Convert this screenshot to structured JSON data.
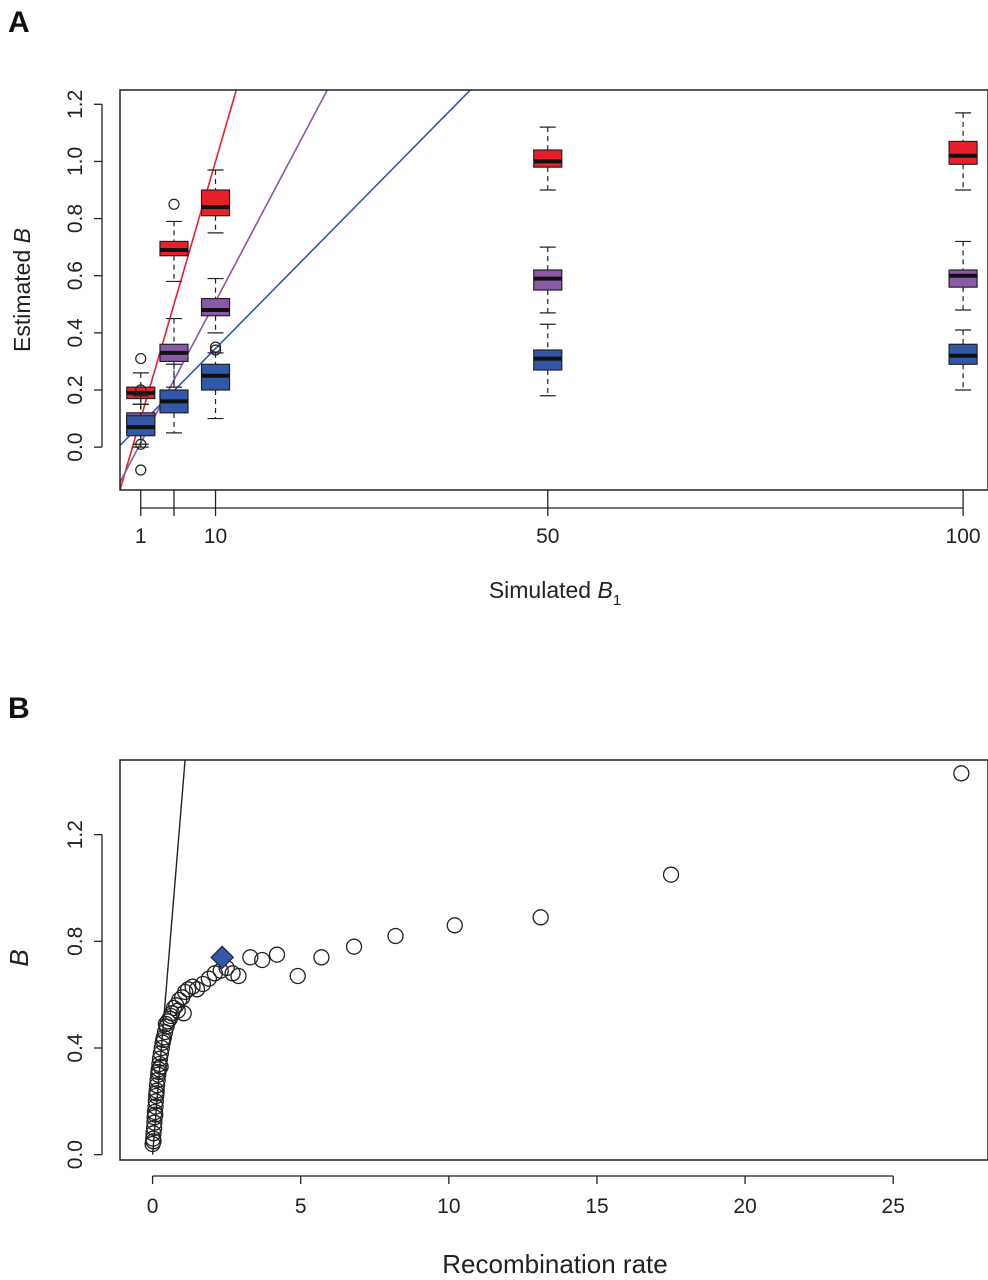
{
  "panels": {
    "a_label": "A",
    "b_label": "B"
  },
  "chart_data": [
    {
      "type": "box",
      "panel": "A",
      "title": "",
      "xlabel": "Simulated B1",
      "xlabel_main": "Simulated ",
      "xlabel_italic": "B",
      "xlabel_sub": "1",
      "ylabel": "Estimated B",
      "ylabel_main": "Estimated ",
      "ylabel_italic": "B",
      "xlim": [
        -1.5,
        103
      ],
      "ylim": [
        -0.15,
        1.25
      ],
      "xticks": [
        1,
        5,
        10,
        50,
        100
      ],
      "xtick_labels": [
        "1",
        "",
        "10",
        "50",
        "100"
      ],
      "yticks": [
        0.0,
        0.2,
        0.4,
        0.6,
        0.8,
        1.0,
        1.2
      ],
      "ytick_labels": [
        "0.0",
        "0.2",
        "0.4",
        "0.6",
        "0.8",
        "1.0",
        "1.2"
      ],
      "series": [
        {
          "color": "#e8202a",
          "boxes": [
            {
              "x": 1,
              "whislo": 0.15,
              "q1": 0.17,
              "med": 0.19,
              "q3": 0.21,
              "whishi": 0.26,
              "outliers": [
                0.31,
                0.2
              ]
            },
            {
              "x": 5,
              "whislo": 0.58,
              "q1": 0.67,
              "med": 0.69,
              "q3": 0.72,
              "whishi": 0.79,
              "outliers": [
                0.85
              ]
            },
            {
              "x": 10,
              "whislo": 0.75,
              "q1": 0.81,
              "med": 0.84,
              "q3": 0.9,
              "whishi": 0.97,
              "outliers": []
            },
            {
              "x": 50,
              "whislo": 0.9,
              "q1": 0.98,
              "med": 1.0,
              "q3": 1.04,
              "whishi": 1.12,
              "outliers": []
            },
            {
              "x": 100,
              "whislo": 0.9,
              "q1": 0.99,
              "med": 1.02,
              "q3": 1.07,
              "whishi": 1.17,
              "outliers": []
            }
          ],
          "line": {
            "slope": 0.1,
            "intercept": 0.0
          }
        },
        {
          "color": "#8a5aa8",
          "boxes": [
            {
              "x": 1,
              "whislo": 0.01,
              "q1": 0.05,
              "med": 0.08,
              "q3": 0.12,
              "whishi": 0.18,
              "outliers": []
            },
            {
              "x": 5,
              "whislo": 0.21,
              "q1": 0.3,
              "med": 0.33,
              "q3": 0.36,
              "whishi": 0.45,
              "outliers": []
            },
            {
              "x": 10,
              "whislo": 0.4,
              "q1": 0.46,
              "med": 0.48,
              "q3": 0.52,
              "whishi": 0.59,
              "outliers": []
            },
            {
              "x": 50,
              "whislo": 0.47,
              "q1": 0.55,
              "med": 0.59,
              "q3": 0.62,
              "whishi": 0.7,
              "outliers": []
            },
            {
              "x": 100,
              "whislo": 0.48,
              "q1": 0.56,
              "med": 0.6,
              "q3": 0.62,
              "whishi": 0.72,
              "outliers": []
            }
          ],
          "line": {
            "slope": 0.055,
            "intercept": -0.04
          }
        },
        {
          "color": "#3358a8",
          "boxes": [
            {
              "x": 1,
              "whislo": 0.0,
              "q1": 0.04,
              "med": 0.07,
              "q3": 0.11,
              "whishi": 0.15,
              "outliers": [
                0.01,
                -0.08
              ]
            },
            {
              "x": 5,
              "whislo": 0.05,
              "q1": 0.12,
              "med": 0.16,
              "q3": 0.2,
              "whishi": 0.29,
              "outliers": []
            },
            {
              "x": 10,
              "whislo": 0.1,
              "q1": 0.2,
              "med": 0.25,
              "q3": 0.29,
              "whishi": 0.33,
              "outliers": [
                0.35,
                0.34
              ]
            },
            {
              "x": 50,
              "whislo": 0.18,
              "q1": 0.27,
              "med": 0.31,
              "q3": 0.34,
              "whishi": 0.43,
              "outliers": []
            },
            {
              "x": 100,
              "whislo": 0.2,
              "q1": 0.29,
              "med": 0.32,
              "q3": 0.36,
              "whishi": 0.41,
              "outliers": []
            }
          ],
          "line": {
            "slope": 0.0295,
            "intercept": 0.05
          }
        }
      ]
    },
    {
      "type": "scatter",
      "panel": "B",
      "title": "",
      "xlabel": "Recombination rate",
      "ylabel": "B",
      "xlim": [
        -1.1,
        28.2
      ],
      "ylim": [
        -0.02,
        1.48
      ],
      "xticks": [
        0,
        5,
        10,
        15,
        20,
        25
      ],
      "xtick_labels": [
        "0",
        "5",
        "10",
        "15",
        "20",
        "25"
      ],
      "yticks": [
        0.0,
        0.4,
        0.8,
        1.2
      ],
      "ytick_labels": [
        "0.0",
        "0.4",
        "0.8",
        "1.2"
      ],
      "points": [
        [
          0.0,
          0.04
        ],
        [
          0.02,
          0.06
        ],
        [
          0.03,
          0.08
        ],
        [
          0.05,
          0.1
        ],
        [
          0.06,
          0.12
        ],
        [
          0.07,
          0.14
        ],
        [
          0.08,
          0.16
        ],
        [
          0.1,
          0.18
        ],
        [
          0.11,
          0.2
        ],
        [
          0.12,
          0.22
        ],
        [
          0.14,
          0.24
        ],
        [
          0.15,
          0.26
        ],
        [
          0.17,
          0.28
        ],
        [
          0.19,
          0.3
        ],
        [
          0.21,
          0.32
        ],
        [
          0.23,
          0.34
        ],
        [
          0.25,
          0.36
        ],
        [
          0.28,
          0.38
        ],
        [
          0.31,
          0.4
        ],
        [
          0.34,
          0.42
        ],
        [
          0.38,
          0.44
        ],
        [
          0.42,
          0.46
        ],
        [
          0.47,
          0.48
        ],
        [
          0.52,
          0.5
        ],
        [
          0.58,
          0.51
        ],
        [
          0.65,
          0.53
        ],
        [
          0.72,
          0.55
        ],
        [
          0.8,
          0.56
        ],
        [
          0.9,
          0.58
        ],
        [
          1.0,
          0.59
        ],
        [
          1.1,
          0.61
        ],
        [
          1.2,
          0.62
        ],
        [
          1.35,
          0.63
        ],
        [
          1.5,
          0.62
        ],
        [
          1.7,
          0.64
        ],
        [
          1.9,
          0.66
        ],
        [
          2.1,
          0.68
        ],
        [
          2.3,
          0.69
        ],
        [
          2.5,
          0.7
        ],
        [
          2.7,
          0.68
        ],
        [
          2.9,
          0.67
        ],
        [
          3.3,
          0.74
        ],
        [
          3.7,
          0.73
        ],
        [
          4.2,
          0.75
        ],
        [
          4.9,
          0.67
        ],
        [
          5.7,
          0.74
        ],
        [
          6.8,
          0.78
        ],
        [
          8.2,
          0.82
        ],
        [
          10.2,
          0.86
        ],
        [
          13.1,
          0.89
        ],
        [
          17.5,
          1.05
        ],
        [
          27.3,
          1.43
        ],
        [
          0.03,
          0.05
        ],
        [
          0.09,
          0.15
        ],
        [
          0.13,
          0.23
        ],
        [
          0.2,
          0.31
        ],
        [
          0.27,
          0.33
        ],
        [
          0.36,
          0.43
        ],
        [
          0.45,
          0.49
        ],
        [
          0.62,
          0.52
        ],
        [
          0.85,
          0.54
        ],
        [
          1.05,
          0.53
        ]
      ],
      "highlight": {
        "x": 2.35,
        "y": 0.74,
        "color": "#3358a8",
        "marker": "diamond"
      },
      "line": {
        "slope": 1.35,
        "intercept": 0.0
      }
    }
  ]
}
